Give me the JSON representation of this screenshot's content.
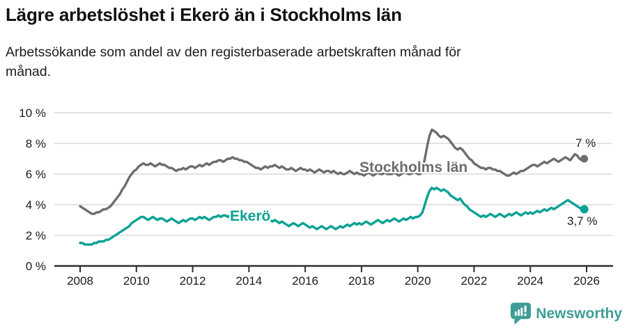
{
  "header": {
    "title": "Lägre arbetslöshet i Ekerö än i Stockholms län",
    "subtitle": "Arbetssökande som andel av den registerbaserade arbetskraften månad för månad."
  },
  "chart_data": {
    "type": "line",
    "unit": "%",
    "x_start_year": 2008,
    "x_end_year": 2026,
    "months_per_point": 1,
    "ylim": [
      0,
      10
    ],
    "grid": "horizontal",
    "x_ticks": [
      2008,
      2010,
      2012,
      2014,
      2016,
      2018,
      2020,
      2022,
      2024,
      2026
    ],
    "y_ticks": [
      0,
      2,
      4,
      6,
      8,
      10
    ],
    "y_tick_labels": [
      "0 %",
      "2 %",
      "4 %",
      "6 %",
      "8 %",
      "10 %"
    ],
    "colors": {
      "grid": "#d9d9d9",
      "axis": "#2e2e2e",
      "text": "#1a1a1a"
    },
    "series": [
      {
        "name": "Stockholms län",
        "color": "#6d6d6d",
        "end_label": "7 %",
        "end_value": 7.0,
        "values": [
          3.9,
          3.8,
          3.7,
          3.6,
          3.5,
          3.4,
          3.4,
          3.5,
          3.5,
          3.6,
          3.7,
          3.7,
          3.8,
          3.9,
          4.1,
          4.3,
          4.5,
          4.7,
          5.0,
          5.2,
          5.5,
          5.8,
          6.0,
          6.2,
          6.3,
          6.5,
          6.6,
          6.7,
          6.6,
          6.6,
          6.7,
          6.6,
          6.5,
          6.6,
          6.7,
          6.6,
          6.6,
          6.5,
          6.4,
          6.4,
          6.3,
          6.2,
          6.3,
          6.3,
          6.4,
          6.3,
          6.4,
          6.5,
          6.5,
          6.4,
          6.5,
          6.6,
          6.5,
          6.6,
          6.7,
          6.6,
          6.7,
          6.8,
          6.8,
          6.9,
          6.9,
          6.8,
          6.9,
          7.0,
          7.0,
          7.1,
          7.0,
          7.0,
          6.9,
          6.9,
          6.8,
          6.8,
          6.7,
          6.6,
          6.5,
          6.4,
          6.4,
          6.3,
          6.4,
          6.5,
          6.4,
          6.5,
          6.5,
          6.6,
          6.5,
          6.4,
          6.5,
          6.4,
          6.3,
          6.3,
          6.4,
          6.3,
          6.2,
          6.3,
          6.4,
          6.3,
          6.3,
          6.2,
          6.3,
          6.2,
          6.1,
          6.2,
          6.3,
          6.2,
          6.1,
          6.2,
          6.2,
          6.1,
          6.2,
          6.1,
          6.0,
          6.1,
          6.0,
          6.0,
          6.1,
          6.2,
          6.1,
          6.0,
          6.1,
          6.0,
          6.0,
          5.9,
          6.0,
          6.1,
          6.0,
          5.9,
          6.0,
          6.1,
          6.0,
          6.0,
          6.1,
          6.0,
          6.0,
          6.0,
          6.1,
          6.0,
          5.9,
          6.0,
          6.1,
          6.1,
          6.0,
          6.0,
          6.1,
          6.1,
          6.0,
          6.0,
          6.2,
          7.0,
          7.8,
          8.5,
          8.9,
          8.8,
          8.7,
          8.5,
          8.4,
          8.5,
          8.4,
          8.3,
          8.1,
          7.9,
          7.7,
          7.6,
          7.7,
          7.6,
          7.4,
          7.2,
          7.0,
          6.9,
          6.7,
          6.6,
          6.5,
          6.4,
          6.4,
          6.3,
          6.4,
          6.4,
          6.3,
          6.3,
          6.2,
          6.2,
          6.1,
          6.0,
          5.9,
          5.9,
          6.0,
          6.1,
          6.0,
          6.1,
          6.2,
          6.2,
          6.3,
          6.4,
          6.5,
          6.6,
          6.6,
          6.5,
          6.6,
          6.7,
          6.8,
          6.7,
          6.8,
          6.9,
          7.0,
          6.9,
          6.8,
          6.9,
          7.0,
          7.1,
          7.0,
          6.9,
          7.1,
          7.3,
          7.2,
          7.0,
          6.9,
          7.0
        ]
      },
      {
        "name": "Ekerö",
        "color": "#0aa294",
        "end_label": "3,7 %",
        "end_value": 3.7,
        "values": [
          1.5,
          1.5,
          1.4,
          1.4,
          1.4,
          1.4,
          1.5,
          1.5,
          1.6,
          1.6,
          1.6,
          1.7,
          1.7,
          1.8,
          1.9,
          2.0,
          2.1,
          2.2,
          2.3,
          2.4,
          2.5,
          2.6,
          2.8,
          2.9,
          3.0,
          3.1,
          3.2,
          3.2,
          3.1,
          3.0,
          3.1,
          3.2,
          3.1,
          3.0,
          3.1,
          3.1,
          3.0,
          2.9,
          3.0,
          3.1,
          3.0,
          2.9,
          2.8,
          2.9,
          3.0,
          2.9,
          3.0,
          3.1,
          3.1,
          3.0,
          3.1,
          3.2,
          3.1,
          3.2,
          3.1,
          3.0,
          3.1,
          3.2,
          3.2,
          3.3,
          3.2,
          3.3,
          3.3,
          3.2,
          3.3,
          3.4,
          3.3,
          3.3,
          3.2,
          3.3,
          3.3,
          3.4,
          3.3,
          3.3,
          3.2,
          3.3,
          3.2,
          3.1,
          3.2,
          3.1,
          3.0,
          3.0,
          2.9,
          3.0,
          2.9,
          2.8,
          2.9,
          2.8,
          2.7,
          2.6,
          2.7,
          2.8,
          2.7,
          2.6,
          2.7,
          2.8,
          2.7,
          2.6,
          2.5,
          2.6,
          2.5,
          2.4,
          2.5,
          2.6,
          2.5,
          2.4,
          2.5,
          2.6,
          2.5,
          2.4,
          2.5,
          2.6,
          2.5,
          2.6,
          2.7,
          2.6,
          2.7,
          2.8,
          2.7,
          2.8,
          2.7,
          2.8,
          2.9,
          2.8,
          2.7,
          2.8,
          2.9,
          3.0,
          2.9,
          2.8,
          2.9,
          3.0,
          2.9,
          3.0,
          3.1,
          3.0,
          2.9,
          3.0,
          3.1,
          3.0,
          3.1,
          3.2,
          3.1,
          3.2,
          3.2,
          3.3,
          3.5,
          4.0,
          4.5,
          4.9,
          5.1,
          5.0,
          5.1,
          5.0,
          4.9,
          5.0,
          4.9,
          4.8,
          4.6,
          4.5,
          4.4,
          4.3,
          4.4,
          4.2,
          4.0,
          3.9,
          3.7,
          3.6,
          3.5,
          3.4,
          3.3,
          3.2,
          3.3,
          3.2,
          3.3,
          3.4,
          3.3,
          3.2,
          3.3,
          3.4,
          3.3,
          3.2,
          3.3,
          3.4,
          3.3,
          3.4,
          3.5,
          3.4,
          3.3,
          3.4,
          3.5,
          3.4,
          3.5,
          3.4,
          3.5,
          3.6,
          3.5,
          3.6,
          3.7,
          3.6,
          3.7,
          3.8,
          3.7,
          3.8,
          3.9,
          4.0,
          4.1,
          4.2,
          4.3,
          4.2,
          4.1,
          4.0,
          3.9,
          3.8,
          3.7,
          3.7
        ]
      }
    ]
  },
  "footer": {
    "brand": "Newsworthy",
    "brand_color": "#3e9e96",
    "logo_icon": "newsworthy-bubble-barchart-icon"
  }
}
